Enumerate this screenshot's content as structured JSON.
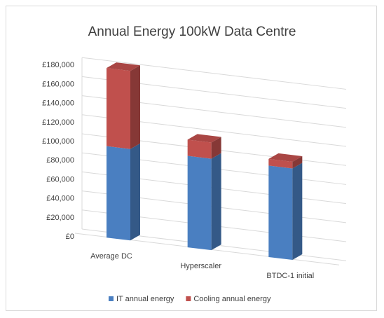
{
  "chart_data": {
    "type": "bar",
    "stacked": true,
    "three_d": true,
    "title": "Annual Energy 100kW Data Centre",
    "categories": [
      "Average DC",
      "Hyperscaler",
      "BTDC-1 initial"
    ],
    "series": [
      {
        "name": "IT annual energy",
        "color": "#4a7fc1",
        "values": [
          96000,
          96000,
          96000
        ]
      },
      {
        "name": "Cooling annual energy",
        "color": "#c0504d",
        "values": [
          82000,
          17000,
          7000
        ]
      }
    ],
    "ylim": [
      0,
      180000
    ],
    "y_ticks": [
      "£0",
      "£20,000",
      "£40,000",
      "£60,000",
      "£80,000",
      "£100,000",
      "£120,000",
      "£140,000",
      "£160,000",
      "£180,000"
    ],
    "grid": true,
    "legend_position": "bottom"
  }
}
